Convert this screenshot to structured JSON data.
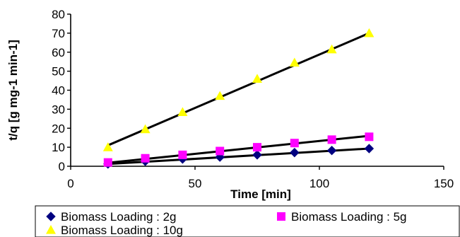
{
  "chart_data": {
    "type": "scatter",
    "title": "",
    "xlabel": "Time [min]",
    "ylabel": "t/q [g mg-1 min-1]",
    "xlim": [
      0,
      150
    ],
    "ylim": [
      0,
      80
    ],
    "xticks": [
      "0",
      "50",
      "100",
      "150"
    ],
    "yticks": [
      "0",
      "10",
      "20",
      "30",
      "40",
      "50",
      "60",
      "70",
      "80"
    ],
    "grid": false,
    "legend_position": "bottom",
    "series": [
      {
        "name": "Biomass Loading : 2g",
        "marker": "diamond",
        "color": "#000080",
        "x": [
          15,
          30,
          45,
          60,
          75,
          90,
          105,
          120
        ],
        "y": [
          1.2,
          2.6,
          3.8,
          4.8,
          6.0,
          7.2,
          8.3,
          9.3
        ],
        "trendline": [
          [
            15,
            1.2
          ],
          [
            120,
            9.3
          ]
        ]
      },
      {
        "name": "Biomass Loading : 5g",
        "marker": "square",
        "color": "#ff00ff",
        "x": [
          15,
          30,
          45,
          60,
          75,
          90,
          105,
          120
        ],
        "y": [
          2.0,
          4.2,
          6.0,
          8.0,
          10.0,
          12.2,
          14.0,
          15.5
        ],
        "trendline": [
          [
            15,
            1.8
          ],
          [
            120,
            16.0
          ]
        ]
      },
      {
        "name": "Biomass Loading : 10g",
        "marker": "triangle",
        "color": "#ffff00",
        "x": [
          15,
          30,
          45,
          60,
          75,
          90,
          105,
          120
        ],
        "y": [
          10.0,
          19.5,
          28.5,
          37.0,
          46.0,
          54.5,
          61.5,
          70.0
        ],
        "trendline": [
          [
            15,
            11.0
          ],
          [
            120,
            70.0
          ]
        ]
      }
    ]
  }
}
